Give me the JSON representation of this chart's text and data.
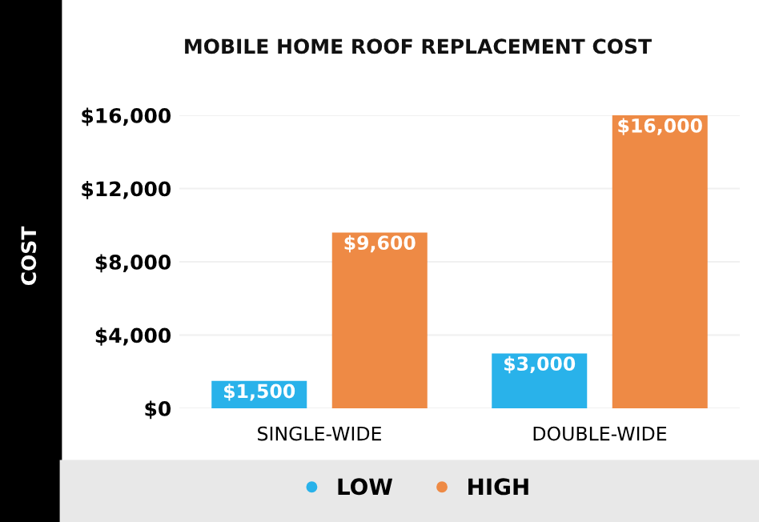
{
  "chart_data": {
    "type": "bar",
    "title": "MOBILE HOME ROOF REPLACEMENT COST",
    "ylabel": "COST",
    "categories": [
      "SINGLE-WIDE",
      "DOUBLE-WIDE"
    ],
    "series": [
      {
        "name": "LOW",
        "color": "#29b2ea",
        "values": [
          1500,
          3000
        ],
        "value_labels": [
          "$1,500",
          "$3,000"
        ]
      },
      {
        "name": "HIGH",
        "color": "#ee8a45",
        "values": [
          9600,
          16000
        ],
        "value_labels": [
          "$9,600",
          "$16,000"
        ]
      }
    ],
    "ylim": [
      0,
      16000
    ],
    "yticks": [
      {
        "value": 0,
        "label": "$0"
      },
      {
        "value": 4000,
        "label": "$4,000"
      },
      {
        "value": 8000,
        "label": "$8,000"
      },
      {
        "value": 12000,
        "label": "$12,000"
      },
      {
        "value": 16000,
        "label": "$16,000"
      }
    ],
    "grid": "y",
    "legend": "bottom"
  }
}
